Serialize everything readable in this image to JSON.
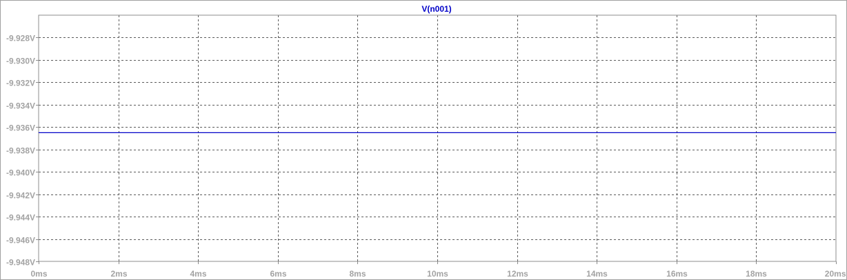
{
  "chart_data": {
    "type": "line",
    "title": "",
    "xlabel": "",
    "ylabel": "",
    "x_tick_labels": [
      "0ms",
      "2ms",
      "4ms",
      "6ms",
      "8ms",
      "10ms",
      "12ms",
      "14ms",
      "16ms",
      "18ms",
      "20ms"
    ],
    "y_tick_labels": [
      "-9.928V",
      "-9.930V",
      "-9.932V",
      "-9.934V",
      "-9.936V",
      "-9.938V",
      "-9.940V",
      "-9.942V",
      "-9.944V",
      "-9.946V",
      "-9.948V"
    ],
    "xlim": [
      0,
      20
    ],
    "x_unit": "ms",
    "ylim": [
      -9.948,
      -9.926
    ],
    "y_unit": "V",
    "grid": true,
    "series": [
      {
        "name": "V(n001)",
        "color": "#0000c8",
        "x": [
          0,
          20
        ],
        "y": [
          -9.9365,
          -9.9365
        ]
      }
    ]
  }
}
